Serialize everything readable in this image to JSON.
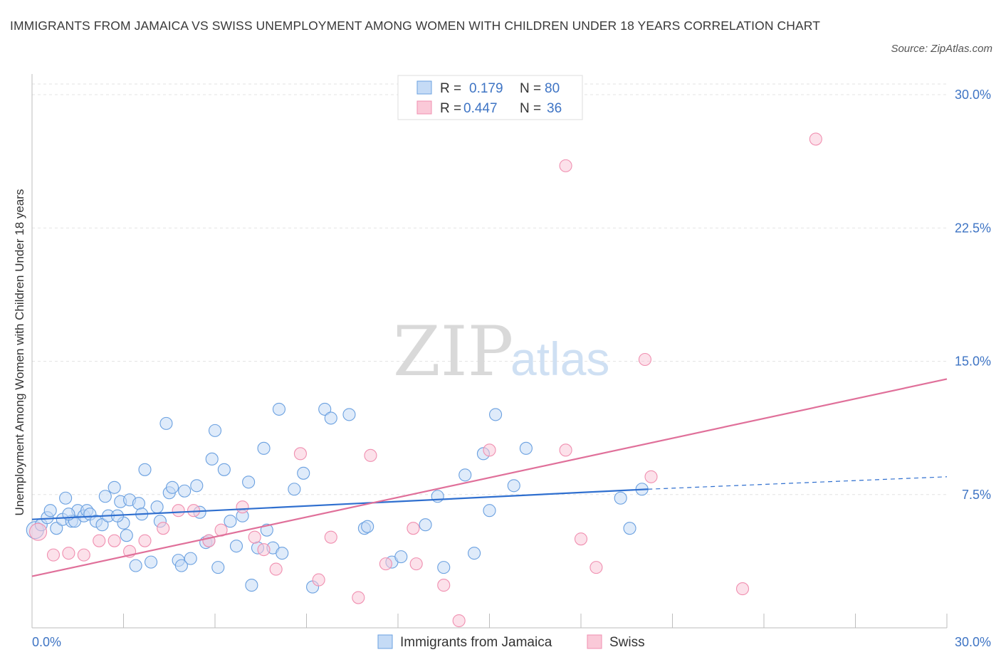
{
  "title": "IMMIGRANTS FROM JAMAICA VS SWISS UNEMPLOYMENT AMONG WOMEN WITH CHILDREN UNDER 18 YEARS CORRELATION CHART",
  "source": "Source: ZipAtlas.com",
  "watermark": {
    "zip": "ZIP",
    "atlas": "atlas"
  },
  "colors": {
    "jamaica": "#6aa0e0",
    "swiss": "#f08fb0",
    "jamaica_line": "#2f6fcf",
    "swiss_line": "#e0709a",
    "tick_text": "#3e74c4"
  },
  "legend": {
    "r_label": "R =",
    "n_label": "N =",
    "rows": [
      {
        "r": "0.179",
        "n": "80"
      },
      {
        "r": "0.447",
        "n": "36"
      }
    ]
  },
  "chart_data": {
    "type": "scatter",
    "xlabel": "",
    "ylabel": "Unemployment Among Women with Children Under 18 years",
    "xlim": [
      0,
      30
    ],
    "ylim": [
      0,
      30
    ],
    "x_tick_labels": [
      "0.0%",
      "30.0%"
    ],
    "y_ticks": [
      7.5,
      15,
      22.5,
      30
    ],
    "y_tick_labels": [
      "7.5%",
      "15.0%",
      "22.5%",
      "30.0%"
    ],
    "grid": true,
    "legend_position": "top-center",
    "series": [
      {
        "name": "Immigrants from Jamaica",
        "trend": {
          "x0": 0,
          "y0": 6.1,
          "x1": 20.2,
          "y1": 7.8,
          "dash_x1": 30,
          "dash_y1": 8.5
        },
        "points": [
          [
            0.1,
            5.5
          ],
          [
            0.3,
            5.8
          ],
          [
            0.5,
            6.2
          ],
          [
            0.6,
            6.6
          ],
          [
            0.8,
            5.6
          ],
          [
            1.0,
            6.1
          ],
          [
            1.1,
            7.3
          ],
          [
            1.3,
            6.0
          ],
          [
            1.4,
            6.0
          ],
          [
            1.5,
            6.6
          ],
          [
            1.7,
            6.3
          ],
          [
            1.8,
            6.6
          ],
          [
            1.9,
            6.4
          ],
          [
            2.1,
            6.0
          ],
          [
            2.3,
            5.8
          ],
          [
            2.4,
            7.4
          ],
          [
            2.5,
            6.3
          ],
          [
            2.7,
            7.9
          ],
          [
            2.9,
            7.1
          ],
          [
            3.0,
            5.9
          ],
          [
            3.1,
            5.2
          ],
          [
            3.2,
            7.2
          ],
          [
            3.4,
            3.5
          ],
          [
            3.5,
            7.0
          ],
          [
            3.6,
            6.4
          ],
          [
            3.7,
            8.9
          ],
          [
            3.9,
            3.7
          ],
          [
            4.1,
            6.8
          ],
          [
            4.2,
            6.0
          ],
          [
            4.4,
            11.5
          ],
          [
            4.5,
            7.6
          ],
          [
            4.6,
            7.9
          ],
          [
            4.8,
            3.8
          ],
          [
            4.9,
            3.5
          ],
          [
            5.0,
            7.7
          ],
          [
            5.2,
            3.9
          ],
          [
            5.4,
            8.0
          ],
          [
            5.5,
            6.5
          ],
          [
            5.7,
            4.8
          ],
          [
            5.8,
            4.9
          ],
          [
            5.9,
            9.5
          ],
          [
            6.0,
            11.1
          ],
          [
            6.1,
            3.4
          ],
          [
            6.3,
            8.9
          ],
          [
            6.5,
            6.0
          ],
          [
            6.7,
            4.6
          ],
          [
            6.9,
            6.3
          ],
          [
            7.1,
            8.2
          ],
          [
            7.2,
            2.4
          ],
          [
            7.4,
            4.5
          ],
          [
            7.6,
            10.1
          ],
          [
            7.7,
            5.5
          ],
          [
            7.9,
            4.5
          ],
          [
            8.1,
            12.3
          ],
          [
            8.2,
            4.2
          ],
          [
            8.6,
            7.8
          ],
          [
            8.9,
            8.7
          ],
          [
            9.2,
            2.3
          ],
          [
            9.6,
            12.3
          ],
          [
            9.8,
            11.8
          ],
          [
            10.4,
            12.0
          ],
          [
            10.9,
            5.6
          ],
          [
            11.0,
            5.7
          ],
          [
            11.8,
            3.7
          ],
          [
            12.1,
            4.0
          ],
          [
            12.9,
            5.8
          ],
          [
            13.3,
            7.4
          ],
          [
            13.5,
            3.4
          ],
          [
            14.2,
            8.6
          ],
          [
            14.5,
            4.2
          ],
          [
            15.2,
            12.0
          ],
          [
            15.8,
            8.0
          ],
          [
            16.2,
            10.1
          ],
          [
            19.3,
            7.3
          ],
          [
            19.6,
            5.6
          ],
          [
            20.0,
            7.8
          ],
          [
            15.0,
            6.6
          ],
          [
            14.8,
            9.8
          ],
          [
            1.2,
            6.4
          ],
          [
            2.8,
            6.3
          ]
        ]
      },
      {
        "name": "Swiss",
        "trend": {
          "x0": 0,
          "y0": 2.9,
          "x1": 30,
          "y1": 14.0
        },
        "points": [
          [
            0.2,
            5.4
          ],
          [
            0.7,
            4.1
          ],
          [
            1.2,
            4.2
          ],
          [
            1.7,
            4.1
          ],
          [
            2.2,
            4.9
          ],
          [
            2.7,
            4.9
          ],
          [
            3.2,
            4.3
          ],
          [
            3.7,
            4.9
          ],
          [
            4.3,
            5.6
          ],
          [
            4.8,
            6.6
          ],
          [
            5.3,
            6.6
          ],
          [
            5.8,
            4.9
          ],
          [
            6.2,
            5.5
          ],
          [
            6.9,
            6.8
          ],
          [
            7.3,
            5.1
          ],
          [
            7.6,
            4.4
          ],
          [
            8.0,
            3.3
          ],
          [
            8.8,
            9.8
          ],
          [
            9.4,
            2.7
          ],
          [
            9.8,
            5.1
          ],
          [
            10.7,
            1.7
          ],
          [
            11.1,
            9.7
          ],
          [
            11.6,
            3.6
          ],
          [
            12.5,
            5.6
          ],
          [
            12.6,
            3.6
          ],
          [
            13.5,
            2.4
          ],
          [
            14.0,
            0.4
          ],
          [
            15.0,
            10.0
          ],
          [
            17.5,
            10.0
          ],
          [
            18.0,
            5.0
          ],
          [
            18.5,
            3.4
          ],
          [
            20.1,
            15.1
          ],
          [
            20.3,
            8.5
          ],
          [
            23.3,
            2.2
          ],
          [
            25.7,
            27.5
          ],
          [
            17.5,
            26.0
          ]
        ]
      }
    ]
  },
  "bottom_legend": [
    "Immigrants from Jamaica",
    "Swiss"
  ]
}
